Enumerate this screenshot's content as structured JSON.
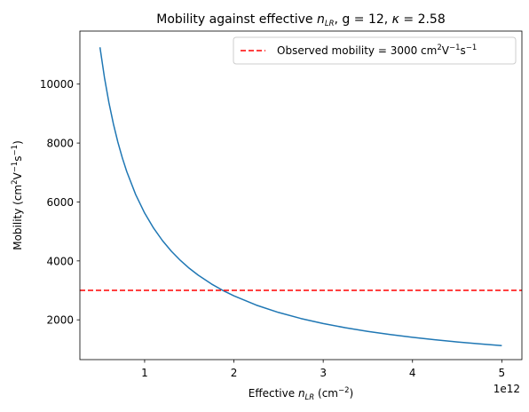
{
  "colors": {
    "series": "#1f77b4",
    "reference": "#ff0000",
    "background": "#ffffff",
    "axes": "#000000",
    "legend_border": "#cccccc"
  },
  "chart_data": {
    "type": "line",
    "title": {
      "prefix": "Mobility against effective ",
      "symbol": "n",
      "symbol_sub": "LR",
      "suffix": ", g = 12, ",
      "kappa": "κ",
      "kappa_suffix": " = 2.58"
    },
    "xlabel": {
      "prefix": "Effective ",
      "symbol": "n",
      "symbol_sub": "LR",
      "unit_open": " (cm",
      "unit_sup": "−2",
      "unit_close": ")"
    },
    "ylabel": {
      "prefix": "Mobility (cm",
      "sup1": "2",
      "mid1": "V",
      "sup2": "−1",
      "mid2": "s",
      "sup3": "−1",
      "close": ")"
    },
    "x_offset_label": "1e12",
    "x_scale_factor": 1000000000000.0,
    "xlim": [
      0.275,
      5.225
    ],
    "ylim": [
      650,
      11800
    ],
    "x_ticks": [
      1,
      2,
      3,
      4,
      5
    ],
    "x_tick_labels": [
      "1",
      "2",
      "3",
      "4",
      "5"
    ],
    "y_ticks": [
      2000,
      4000,
      6000,
      8000,
      10000
    ],
    "y_tick_labels": [
      "2000",
      "4000",
      "6000",
      "8000",
      "10000"
    ],
    "grid": false,
    "legend_position": "upper right",
    "series": [
      {
        "style": "solid",
        "formula": "y = 5625 / x  (x in units of 1e12)",
        "x": [
          0.5,
          0.55,
          0.6,
          0.65,
          0.7,
          0.75,
          0.8,
          0.9,
          1.0,
          1.1,
          1.2,
          1.3,
          1.4,
          1.5,
          1.6,
          1.75,
          1.875,
          2.0,
          2.25,
          2.5,
          2.75,
          3.0,
          3.25,
          3.5,
          3.75,
          4.0,
          4.25,
          4.5,
          4.75,
          5.0
        ],
        "y": [
          11250,
          10227,
          9375,
          8654,
          8036,
          7500,
          7031,
          6250,
          5625,
          5114,
          4688,
          4327,
          4018,
          3750,
          3516,
          3214,
          3000,
          2813,
          2500,
          2250,
          2045,
          1875,
          1731,
          1607,
          1500,
          1406,
          1324,
          1250,
          1184,
          1125
        ]
      },
      {
        "style": "dashed",
        "kind": "horizontal-reference",
        "y": 3000,
        "legend": {
          "prefix": "Observed mobility = 3000 cm",
          "sup1": "2",
          "mid1": "V",
          "sup2": "−1",
          "mid2": "s",
          "sup3": "−1"
        }
      }
    ]
  }
}
